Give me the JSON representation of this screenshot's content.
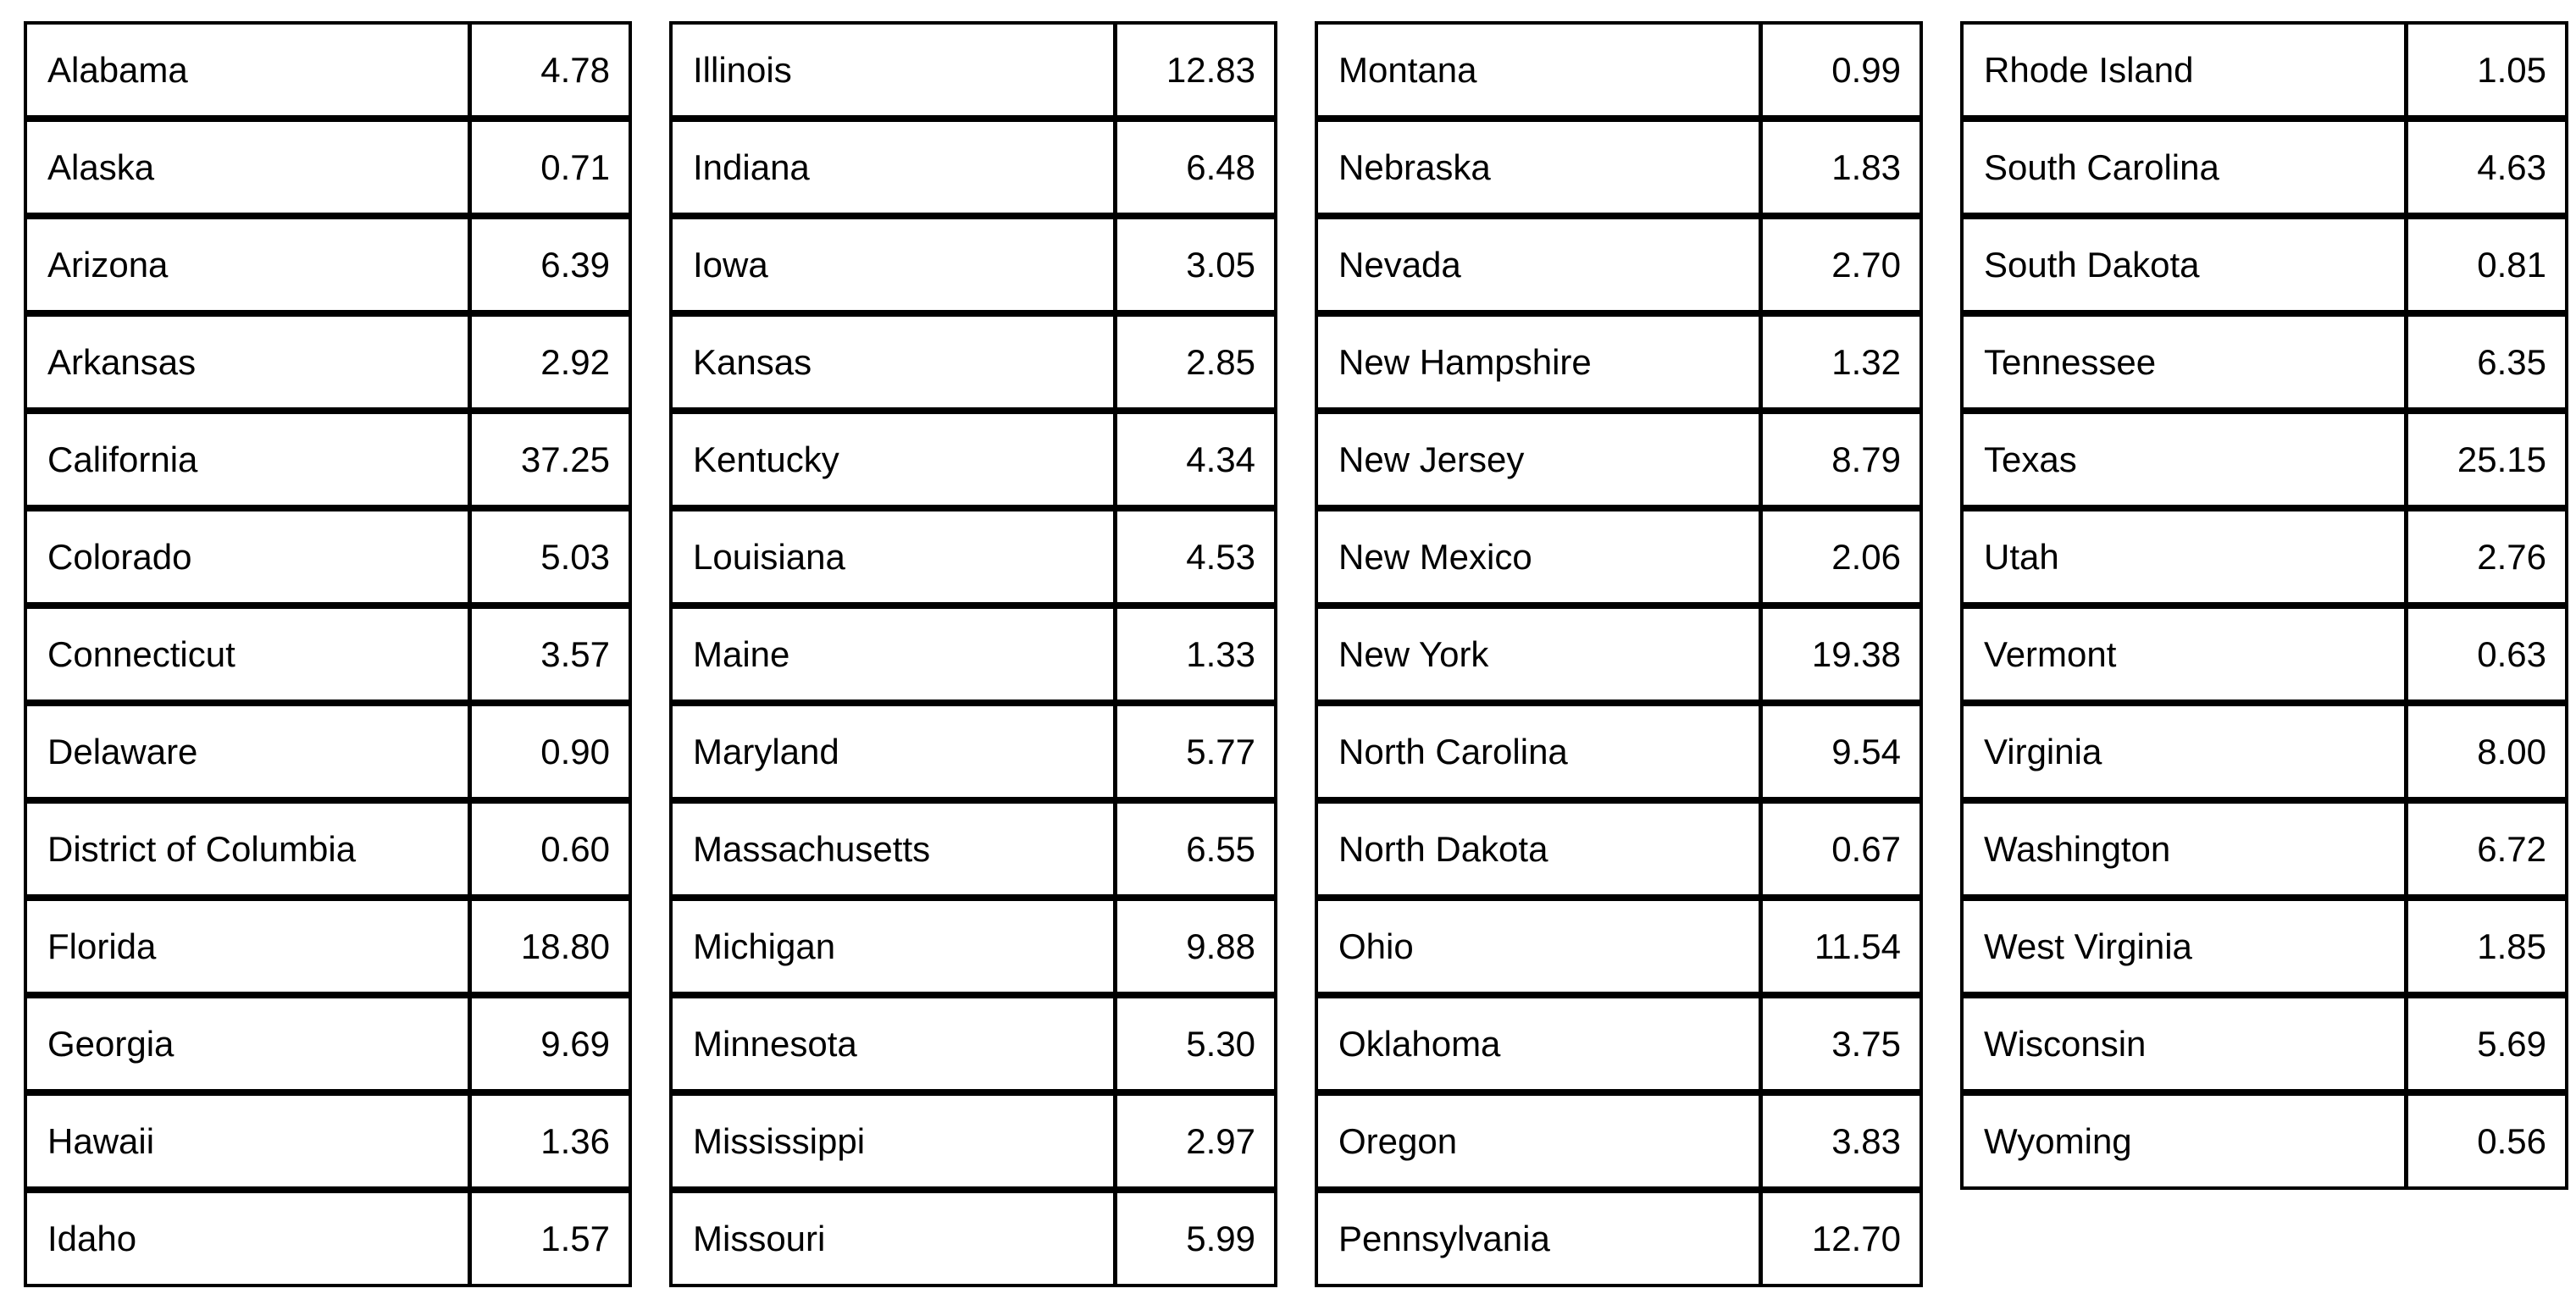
{
  "chart_data": {
    "type": "table",
    "columns": [
      "state",
      "value"
    ],
    "tables": [
      [
        {
          "state": "Alabama",
          "value": "4.78"
        },
        {
          "state": "Alaska",
          "value": "0.71"
        },
        {
          "state": "Arizona",
          "value": "6.39"
        },
        {
          "state": "Arkansas",
          "value": "2.92"
        },
        {
          "state": "California",
          "value": "37.25"
        },
        {
          "state": "Colorado",
          "value": "5.03"
        },
        {
          "state": "Connecticut",
          "value": "3.57"
        },
        {
          "state": "Delaware",
          "value": "0.90"
        },
        {
          "state": "District of Columbia",
          "value": "0.60"
        },
        {
          "state": "Florida",
          "value": "18.80"
        },
        {
          "state": "Georgia",
          "value": "9.69"
        },
        {
          "state": "Hawaii",
          "value": "1.36"
        },
        {
          "state": "Idaho",
          "value": "1.57"
        }
      ],
      [
        {
          "state": "Illinois",
          "value": "12.83"
        },
        {
          "state": "Indiana",
          "value": "6.48"
        },
        {
          "state": "Iowa",
          "value": "3.05"
        },
        {
          "state": "Kansas",
          "value": "2.85"
        },
        {
          "state": "Kentucky",
          "value": "4.34"
        },
        {
          "state": "Louisiana",
          "value": "4.53"
        },
        {
          "state": "Maine",
          "value": "1.33"
        },
        {
          "state": "Maryland",
          "value": "5.77"
        },
        {
          "state": "Massachusetts",
          "value": "6.55"
        },
        {
          "state": "Michigan",
          "value": "9.88"
        },
        {
          "state": "Minnesota",
          "value": "5.30"
        },
        {
          "state": "Mississippi",
          "value": "2.97"
        },
        {
          "state": "Missouri",
          "value": "5.99"
        }
      ],
      [
        {
          "state": "Montana",
          "value": "0.99"
        },
        {
          "state": "Nebraska",
          "value": "1.83"
        },
        {
          "state": "Nevada",
          "value": "2.70"
        },
        {
          "state": "New Hampshire",
          "value": "1.32"
        },
        {
          "state": "New Jersey",
          "value": "8.79"
        },
        {
          "state": "New Mexico",
          "value": "2.06"
        },
        {
          "state": "New York",
          "value": "19.38"
        },
        {
          "state": "North Carolina",
          "value": "9.54"
        },
        {
          "state": "North Dakota",
          "value": "0.67"
        },
        {
          "state": "Ohio",
          "value": "11.54"
        },
        {
          "state": "Oklahoma",
          "value": "3.75"
        },
        {
          "state": "Oregon",
          "value": "3.83"
        },
        {
          "state": "Pennsylvania",
          "value": "12.70"
        }
      ],
      [
        {
          "state": "Rhode Island",
          "value": "1.05"
        },
        {
          "state": "South Carolina",
          "value": "4.63"
        },
        {
          "state": "South Dakota",
          "value": "0.81"
        },
        {
          "state": "Tennessee",
          "value": "6.35"
        },
        {
          "state": "Texas",
          "value": "25.15"
        },
        {
          "state": "Utah",
          "value": "2.76"
        },
        {
          "state": "Vermont",
          "value": "0.63"
        },
        {
          "state": "Virginia",
          "value": "8.00"
        },
        {
          "state": "Washington",
          "value": "6.72"
        },
        {
          "state": "West Virginia",
          "value": "1.85"
        },
        {
          "state": "Wisconsin",
          "value": "5.69"
        },
        {
          "state": "Wyoming",
          "value": "0.56"
        }
      ]
    ],
    "layout": {
      "border_color": "#000000",
      "background": "#ffffff",
      "text_color": "#000000"
    }
  }
}
